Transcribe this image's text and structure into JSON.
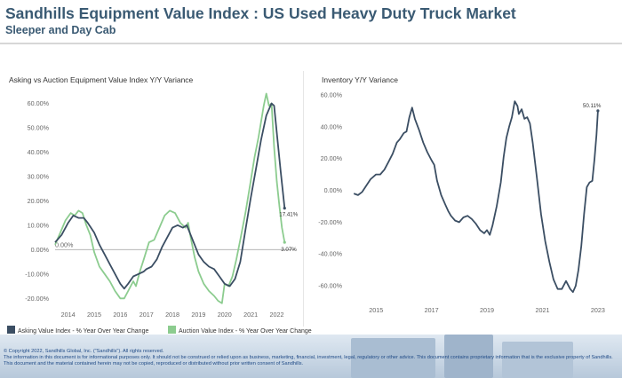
{
  "header": {
    "title": "Sandhills Equipment Value Index : US Used Heavy Duty Truck Market",
    "subtitle": "Sleeper and Day Cab"
  },
  "colors": {
    "asking": "#3b4e63",
    "auction": "#8ccc8f",
    "inventory": "#3b4e63",
    "title": "#3a5a73",
    "footer_text": "#1f4a86"
  },
  "footer": {
    "line1": "© Copyright 2022, Sandhills Global, Inc. (\"Sandhills\"). All rights reserved.",
    "line2": "The information in this document is for informational purposes only.  It should not be construed or relied upon as business, marketing, financial, investment, legal, regulatory or other advice. This document contains proprietary information that is the exclusive property of Sandhills. This document and the material contained herein may not be copied, reproduced or distributed without prior written consent of Sandhills."
  },
  "chart_data": [
    {
      "type": "line",
      "title": "Asking vs Auction Equipment Value Index Y/Y Variance",
      "xlabel": "",
      "ylabel": "",
      "xlim": [
        2013.5,
        2022.7
      ],
      "ylim": [
        -0.25,
        0.66
      ],
      "x_ticks": [
        2014,
        2015,
        2016,
        2017,
        2018,
        2019,
        2020,
        2021,
        2022
      ],
      "x_tick_labels": [
        "2014",
        "2015",
        "2016",
        "2017",
        "2018",
        "2019",
        "2020",
        "2021",
        "2022"
      ],
      "y_ticks": [
        -0.2,
        -0.1,
        0.0,
        0.1,
        0.2,
        0.3,
        0.4,
        0.5,
        0.6
      ],
      "y_tick_labels": [
        "-20.00%",
        "-10.00%",
        "0.00%",
        "10.00%",
        "20.00%",
        "30.00%",
        "40.00%",
        "50.00%",
        "60.00%"
      ],
      "zero_line_label": "0.00%",
      "legend_position": "bottom",
      "series": [
        {
          "name": "Asking Value Index - % Year Over Year Change",
          "end_label": "17.41%",
          "points": [
            [
              2013.5,
              0.03
            ],
            [
              2013.75,
              0.06
            ],
            [
              2014.0,
              0.11
            ],
            [
              2014.2,
              0.14
            ],
            [
              2014.4,
              0.13
            ],
            [
              2014.6,
              0.13
            ],
            [
              2014.75,
              0.11
            ],
            [
              2015.0,
              0.07
            ],
            [
              2015.2,
              0.02
            ],
            [
              2015.4,
              -0.02
            ],
            [
              2015.6,
              -0.06
            ],
            [
              2015.8,
              -0.1
            ],
            [
              2016.0,
              -0.14
            ],
            [
              2016.15,
              -0.16
            ],
            [
              2016.3,
              -0.14
            ],
            [
              2016.5,
              -0.11
            ],
            [
              2016.7,
              -0.1
            ],
            [
              2016.9,
              -0.09
            ],
            [
              2017.0,
              -0.08
            ],
            [
              2017.2,
              -0.07
            ],
            [
              2017.4,
              -0.04
            ],
            [
              2017.6,
              0.01
            ],
            [
              2017.8,
              0.05
            ],
            [
              2018.0,
              0.09
            ],
            [
              2018.2,
              0.1
            ],
            [
              2018.4,
              0.09
            ],
            [
              2018.55,
              0.1
            ],
            [
              2018.7,
              0.06
            ],
            [
              2018.85,
              0.02
            ],
            [
              2019.0,
              -0.02
            ],
            [
              2019.2,
              -0.05
            ],
            [
              2019.4,
              -0.07
            ],
            [
              2019.6,
              -0.08
            ],
            [
              2019.8,
              -0.11
            ],
            [
              2020.0,
              -0.14
            ],
            [
              2020.2,
              -0.15
            ],
            [
              2020.4,
              -0.12
            ],
            [
              2020.6,
              -0.05
            ],
            [
              2020.8,
              0.08
            ],
            [
              2021.0,
              0.21
            ],
            [
              2021.2,
              0.33
            ],
            [
              2021.4,
              0.45
            ],
            [
              2021.6,
              0.55
            ],
            [
              2021.8,
              0.6
            ],
            [
              2021.9,
              0.59
            ],
            [
              2022.0,
              0.48
            ],
            [
              2022.15,
              0.32
            ],
            [
              2022.3,
              0.17
            ]
          ]
        },
        {
          "name": "Auction Value Index - % Year Over Year Change",
          "end_label": "3.07%",
          "points": [
            [
              2013.5,
              0.02
            ],
            [
              2013.7,
              0.07
            ],
            [
              2013.9,
              0.12
            ],
            [
              2014.1,
              0.15
            ],
            [
              2014.25,
              0.14
            ],
            [
              2014.4,
              0.16
            ],
            [
              2014.55,
              0.15
            ],
            [
              2014.7,
              0.1
            ],
            [
              2014.85,
              0.06
            ],
            [
              2015.0,
              -0.01
            ],
            [
              2015.2,
              -0.07
            ],
            [
              2015.4,
              -0.1
            ],
            [
              2015.6,
              -0.13
            ],
            [
              2015.8,
              -0.17
            ],
            [
              2016.0,
              -0.2
            ],
            [
              2016.15,
              -0.2
            ],
            [
              2016.3,
              -0.17
            ],
            [
              2016.5,
              -0.13
            ],
            [
              2016.6,
              -0.15
            ],
            [
              2016.75,
              -0.09
            ],
            [
              2016.9,
              -0.04
            ],
            [
              2017.1,
              0.03
            ],
            [
              2017.3,
              0.04
            ],
            [
              2017.5,
              0.09
            ],
            [
              2017.7,
              0.14
            ],
            [
              2017.9,
              0.16
            ],
            [
              2018.1,
              0.15
            ],
            [
              2018.3,
              0.11
            ],
            [
              2018.5,
              0.09
            ],
            [
              2018.6,
              0.11
            ],
            [
              2018.7,
              0.05
            ],
            [
              2018.85,
              -0.03
            ],
            [
              2019.0,
              -0.09
            ],
            [
              2019.2,
              -0.14
            ],
            [
              2019.4,
              -0.17
            ],
            [
              2019.6,
              -0.19
            ],
            [
              2019.75,
              -0.21
            ],
            [
              2019.9,
              -0.22
            ],
            [
              2020.0,
              -0.14
            ],
            [
              2020.15,
              -0.15
            ],
            [
              2020.3,
              -0.11
            ],
            [
              2020.45,
              -0.04
            ],
            [
              2020.6,
              0.04
            ],
            [
              2020.8,
              0.15
            ],
            [
              2021.0,
              0.28
            ],
            [
              2021.15,
              0.38
            ],
            [
              2021.3,
              0.46
            ],
            [
              2021.5,
              0.59
            ],
            [
              2021.6,
              0.64
            ],
            [
              2021.7,
              0.59
            ],
            [
              2021.8,
              0.6
            ],
            [
              2021.9,
              0.42
            ],
            [
              2022.0,
              0.28
            ],
            [
              2022.1,
              0.18
            ],
            [
              2022.2,
              0.09
            ],
            [
              2022.3,
              0.03
            ]
          ]
        }
      ]
    },
    {
      "type": "line",
      "title": "Inventory Y/Y Variance",
      "xlabel": "",
      "ylabel": "",
      "xlim": [
        2014.0,
        2023.1
      ],
      "ylim": [
        -0.7,
        0.65
      ],
      "x_ticks": [
        2015,
        2017,
        2019,
        2021,
        2023
      ],
      "x_tick_labels": [
        "2015",
        "2017",
        "2019",
        "2021",
        "2023"
      ],
      "y_ticks": [
        -0.6,
        -0.4,
        -0.2,
        0.0,
        0.2,
        0.4,
        0.6
      ],
      "y_tick_labels": [
        "-60.00%",
        "-40.00%",
        "-20.00%",
        "0.00%",
        "20.00%",
        "40.00%",
        "60.00%"
      ],
      "series": [
        {
          "name": "",
          "end_label": "50.11%",
          "points": [
            [
              2014.2,
              -0.02
            ],
            [
              2014.35,
              -0.03
            ],
            [
              2014.5,
              -0.01
            ],
            [
              2014.65,
              0.03
            ],
            [
              2014.8,
              0.07
            ],
            [
              2015.0,
              0.1
            ],
            [
              2015.15,
              0.1
            ],
            [
              2015.3,
              0.13
            ],
            [
              2015.45,
              0.18
            ],
            [
              2015.6,
              0.23
            ],
            [
              2015.75,
              0.3
            ],
            [
              2015.85,
              0.32
            ],
            [
              2016.0,
              0.36
            ],
            [
              2016.1,
              0.37
            ],
            [
              2016.2,
              0.46
            ],
            [
              2016.3,
              0.52
            ],
            [
              2016.4,
              0.45
            ],
            [
              2016.55,
              0.38
            ],
            [
              2016.7,
              0.3
            ],
            [
              2016.85,
              0.24
            ],
            [
              2017.0,
              0.19
            ],
            [
              2017.1,
              0.16
            ],
            [
              2017.2,
              0.06
            ],
            [
              2017.35,
              -0.03
            ],
            [
              2017.5,
              -0.09
            ],
            [
              2017.6,
              -0.13
            ],
            [
              2017.7,
              -0.16
            ],
            [
              2017.85,
              -0.19
            ],
            [
              2018.0,
              -0.2
            ],
            [
              2018.15,
              -0.17
            ],
            [
              2018.3,
              -0.16
            ],
            [
              2018.45,
              -0.18
            ],
            [
              2018.6,
              -0.21
            ],
            [
              2018.75,
              -0.25
            ],
            [
              2018.9,
              -0.27
            ],
            [
              2019.0,
              -0.25
            ],
            [
              2019.1,
              -0.28
            ],
            [
              2019.2,
              -0.22
            ],
            [
              2019.35,
              -0.1
            ],
            [
              2019.5,
              0.05
            ],
            [
              2019.6,
              0.21
            ],
            [
              2019.7,
              0.33
            ],
            [
              2019.8,
              0.4
            ],
            [
              2019.9,
              0.46
            ],
            [
              2020.0,
              0.56
            ],
            [
              2020.1,
              0.53
            ],
            [
              2020.15,
              0.48
            ],
            [
              2020.25,
              0.51
            ],
            [
              2020.35,
              0.45
            ],
            [
              2020.45,
              0.46
            ],
            [
              2020.55,
              0.42
            ],
            [
              2020.65,
              0.3
            ],
            [
              2020.8,
              0.08
            ],
            [
              2020.95,
              -0.15
            ],
            [
              2021.1,
              -0.32
            ],
            [
              2021.25,
              -0.45
            ],
            [
              2021.4,
              -0.56
            ],
            [
              2021.55,
              -0.62
            ],
            [
              2021.7,
              -0.62
            ],
            [
              2021.85,
              -0.57
            ],
            [
              2022.0,
              -0.62
            ],
            [
              2022.1,
              -0.64
            ],
            [
              2022.2,
              -0.6
            ],
            [
              2022.3,
              -0.5
            ],
            [
              2022.4,
              -0.35
            ],
            [
              2022.5,
              -0.15
            ],
            [
              2022.6,
              0.02
            ],
            [
              2022.7,
              0.05
            ],
            [
              2022.8,
              0.06
            ],
            [
              2022.88,
              0.2
            ],
            [
              2022.95,
              0.35
            ],
            [
              2023.0,
              0.5
            ]
          ]
        }
      ]
    }
  ]
}
